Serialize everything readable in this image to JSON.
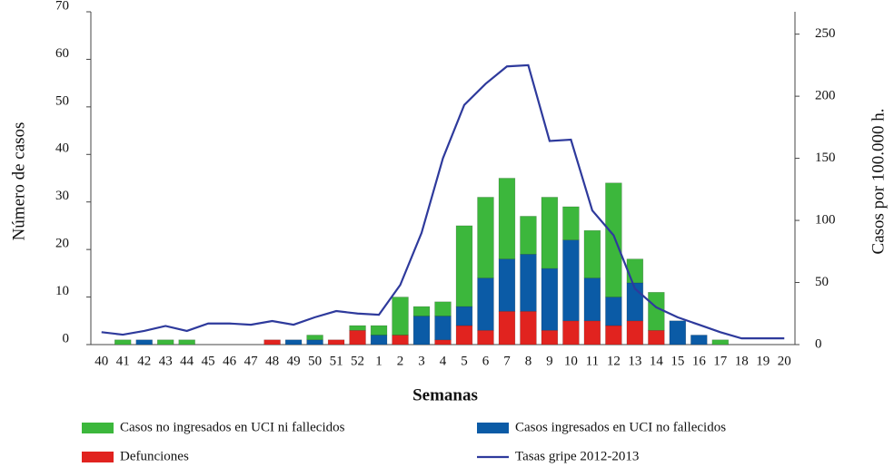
{
  "chart_data": {
    "type": "bar",
    "x_label": "Semanas",
    "y_label": "Número de casos",
    "y2_label": "Casos por 100.000 h.",
    "categories": [
      "40",
      "41",
      "42",
      "43",
      "44",
      "45",
      "46",
      "47",
      "48",
      "49",
      "50",
      "51",
      "52",
      "1",
      "2",
      "3",
      "4",
      "5",
      "6",
      "7",
      "8",
      "9",
      "10",
      "11",
      "12",
      "13",
      "14",
      "15",
      "16",
      "17",
      "18",
      "19",
      "20"
    ],
    "series": [
      {
        "name": "Casos no ingresados en UCI ni fallecidos",
        "color": "#3cb73c",
        "type": "bar",
        "values": [
          0,
          1,
          0,
          1,
          1,
          0,
          0,
          0,
          0,
          0,
          1,
          0,
          1,
          2,
          8,
          2,
          3,
          17,
          17,
          17,
          8,
          15,
          7,
          10,
          24,
          5,
          8,
          0,
          0,
          1,
          0,
          0,
          0
        ]
      },
      {
        "name": "Casos ingresados en UCI no fallecidos",
        "color": "#0b5ba6",
        "type": "bar",
        "values": [
          0,
          0,
          1,
          0,
          0,
          0,
          0,
          0,
          0,
          1,
          1,
          0,
          0,
          2,
          0,
          6,
          5,
          4,
          11,
          11,
          12,
          13,
          17,
          9,
          6,
          8,
          0,
          5,
          2,
          0,
          0,
          0,
          0
        ]
      },
      {
        "name": "Defunciones",
        "color": "#e1231f",
        "type": "bar",
        "values": [
          0,
          0,
          0,
          0,
          0,
          0,
          0,
          0,
          1,
          0,
          0,
          1,
          3,
          0,
          2,
          0,
          1,
          4,
          3,
          7,
          7,
          3,
          5,
          5,
          4,
          5,
          3,
          0,
          0,
          0,
          0,
          0,
          0
        ]
      },
      {
        "name": "Tasas gripe 2012-2013",
        "color": "#2e3a9c",
        "type": "line",
        "axis": "y2",
        "values": [
          10,
          8,
          11,
          15,
          11,
          17,
          17,
          16,
          19,
          16,
          22,
          27,
          25,
          24,
          48,
          90,
          150,
          193,
          210,
          224,
          225,
          164,
          165,
          108,
          88,
          45,
          30,
          22,
          16,
          10,
          5,
          5,
          5
        ]
      }
    ],
    "ylim": [
      0,
      70
    ],
    "yticks": [
      0,
      10,
      20,
      30,
      40,
      50,
      60,
      70
    ],
    "y2lim": [
      0,
      268
    ],
    "y2ticks": [
      0,
      50,
      100,
      150,
      200,
      250
    ]
  }
}
